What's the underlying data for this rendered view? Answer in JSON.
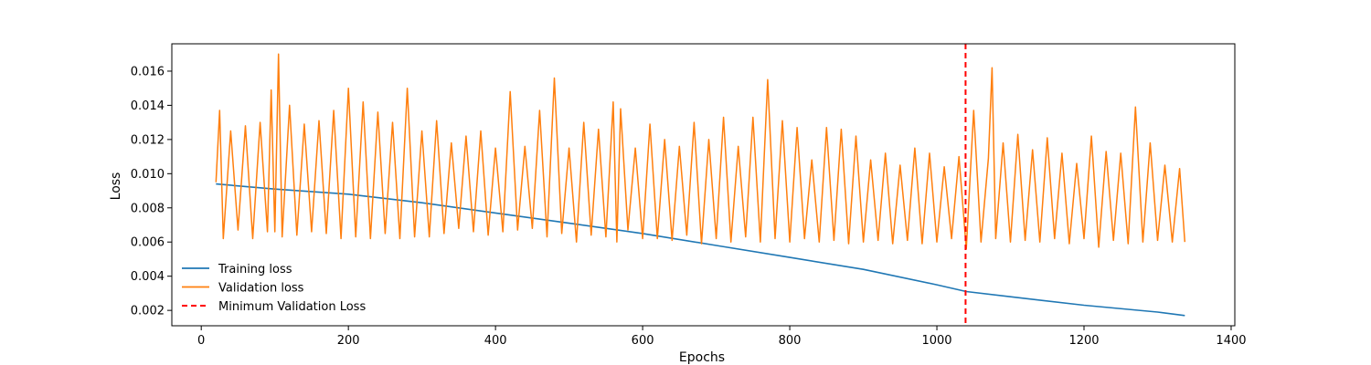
{
  "chart_data": {
    "type": "line",
    "title": "",
    "xlabel": "Epochs",
    "ylabel": "Loss",
    "xlim": [
      -40,
      1405
    ],
    "ylim": [
      0.0011,
      0.0176
    ],
    "xticks": [
      0,
      200,
      400,
      600,
      800,
      1000,
      1200,
      1400
    ],
    "xtick_labels": [
      "0",
      "200",
      "400",
      "600",
      "800",
      "1000",
      "1200",
      "1400"
    ],
    "yticks": [
      0.002,
      0.004,
      0.006,
      0.008,
      0.01,
      0.012,
      0.014,
      0.016
    ],
    "ytick_labels": [
      "0.002",
      "0.004",
      "0.006",
      "0.008",
      "0.010",
      "0.012",
      "0.014",
      "0.016"
    ],
    "grid": false,
    "legend_position": "lower-left",
    "series": [
      {
        "name": "Training loss",
        "color": "#1f77b4",
        "style": "solid",
        "x": [
          20,
          100,
          200,
          300,
          400,
          500,
          600,
          700,
          800,
          900,
          1000,
          1040,
          1100,
          1200,
          1300,
          1337
        ],
        "y": [
          0.0094,
          0.0091,
          0.0088,
          0.0083,
          0.0077,
          0.0071,
          0.0065,
          0.0058,
          0.0051,
          0.0044,
          0.0035,
          0.0031,
          0.0028,
          0.0023,
          0.0019,
          0.0017
        ]
      },
      {
        "name": "Validation loss",
        "color": "#ff7f0e",
        "style": "solid",
        "x": [
          20,
          25,
          30,
          40,
          50,
          60,
          70,
          80,
          90,
          95,
          100,
          105,
          110,
          120,
          130,
          140,
          150,
          160,
          170,
          180,
          190,
          200,
          210,
          220,
          230,
          240,
          250,
          260,
          270,
          280,
          290,
          300,
          310,
          320,
          330,
          340,
          350,
          360,
          370,
          380,
          390,
          400,
          410,
          420,
          430,
          440,
          450,
          460,
          470,
          480,
          490,
          500,
          510,
          520,
          530,
          540,
          550,
          560,
          565,
          570,
          580,
          590,
          600,
          610,
          620,
          630,
          640,
          650,
          660,
          670,
          680,
          690,
          700,
          710,
          720,
          730,
          740,
          750,
          760,
          770,
          780,
          790,
          800,
          810,
          820,
          830,
          840,
          850,
          860,
          870,
          880,
          890,
          900,
          910,
          920,
          930,
          940,
          950,
          960,
          970,
          980,
          990,
          1000,
          1010,
          1020,
          1030,
          1040,
          1050,
          1060,
          1070,
          1075,
          1080,
          1090,
          1100,
          1110,
          1120,
          1130,
          1140,
          1150,
          1160,
          1170,
          1180,
          1190,
          1200,
          1210,
          1220,
          1230,
          1240,
          1250,
          1260,
          1270,
          1280,
          1290,
          1300,
          1310,
          1320,
          1330,
          1337
        ],
        "y": [
          0.0095,
          0.0137,
          0.0062,
          0.0125,
          0.0067,
          0.0128,
          0.0062,
          0.013,
          0.0066,
          0.0149,
          0.0066,
          0.017,
          0.0063,
          0.014,
          0.0064,
          0.0129,
          0.0066,
          0.0131,
          0.0065,
          0.0137,
          0.0062,
          0.015,
          0.0063,
          0.0142,
          0.0062,
          0.0136,
          0.0065,
          0.013,
          0.0062,
          0.015,
          0.0063,
          0.0125,
          0.0063,
          0.0131,
          0.0065,
          0.0118,
          0.0068,
          0.0122,
          0.0066,
          0.0125,
          0.0064,
          0.0115,
          0.0066,
          0.0148,
          0.0067,
          0.0116,
          0.0068,
          0.0137,
          0.0063,
          0.0156,
          0.0065,
          0.0115,
          0.006,
          0.013,
          0.0064,
          0.0126,
          0.0063,
          0.0142,
          0.006,
          0.0138,
          0.0067,
          0.0115,
          0.0062,
          0.0129,
          0.0062,
          0.012,
          0.0061,
          0.0116,
          0.0064,
          0.013,
          0.0059,
          0.012,
          0.0062,
          0.0133,
          0.006,
          0.0116,
          0.0063,
          0.0133,
          0.006,
          0.0155,
          0.0062,
          0.0131,
          0.006,
          0.0127,
          0.0062,
          0.0108,
          0.006,
          0.0127,
          0.0061,
          0.0126,
          0.0059,
          0.0122,
          0.006,
          0.0108,
          0.0061,
          0.0112,
          0.0059,
          0.0105,
          0.0061,
          0.0115,
          0.0059,
          0.0112,
          0.006,
          0.0104,
          0.0062,
          0.011,
          0.0056,
          0.0137,
          0.006,
          0.0109,
          0.0162,
          0.0062,
          0.0118,
          0.006,
          0.0123,
          0.0061,
          0.0114,
          0.006,
          0.0121,
          0.0062,
          0.0112,
          0.0059,
          0.0106,
          0.0062,
          0.0122,
          0.0057,
          0.0113,
          0.0061,
          0.0112,
          0.0059,
          0.0139,
          0.006,
          0.0118,
          0.0061,
          0.0105,
          0.006,
          0.0103,
          0.006
        ]
      },
      {
        "name": "Minimum Validation Loss",
        "color": "#ff0000",
        "style": "dashed",
        "x": [
          1039
        ]
      }
    ]
  }
}
